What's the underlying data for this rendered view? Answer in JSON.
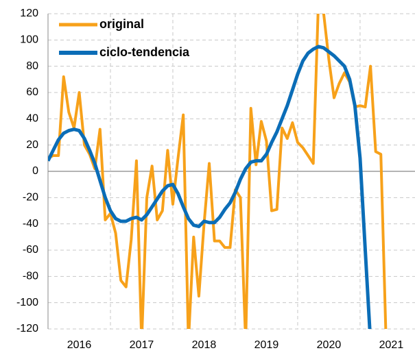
{
  "chart_data": {
    "type": "line",
    "x": [
      2016,
      2016.083,
      2016.167,
      2016.25,
      2016.333,
      2016.417,
      2016.5,
      2016.583,
      2016.667,
      2016.75,
      2016.833,
      2016.917,
      2017,
      2017.083,
      2017.167,
      2017.25,
      2017.333,
      2017.417,
      2017.5,
      2017.583,
      2017.667,
      2017.75,
      2017.833,
      2017.917,
      2018,
      2018.083,
      2018.167,
      2018.25,
      2018.333,
      2018.417,
      2018.5,
      2018.583,
      2018.667,
      2018.75,
      2018.833,
      2018.917,
      2019,
      2019.083,
      2019.167,
      2019.25,
      2019.333,
      2019.417,
      2019.5,
      2019.583,
      2019.667,
      2019.75,
      2019.833,
      2019.917,
      2020,
      2020.083,
      2020.167,
      2020.25,
      2020.333,
      2020.417,
      2020.5,
      2020.583,
      2020.667,
      2020.75,
      2020.833,
      2020.917,
      2021,
      2021.083,
      2021.167,
      2021.25,
      2021.333,
      2021.417
    ],
    "series": [
      {
        "name": "original",
        "color": "#f7a11a",
        "values": [
          10,
          12,
          12,
          72,
          45,
          33,
          60,
          20,
          13,
          2,
          32,
          -37,
          -32,
          -47,
          -83,
          -88,
          -52,
          8,
          -130,
          -20,
          4,
          -37,
          -30,
          16,
          -25,
          10,
          43,
          -130,
          -50,
          -95,
          -40,
          6,
          -53,
          -53,
          -58,
          -58,
          -14,
          -20,
          -130,
          48,
          5,
          38,
          23,
          -30,
          -29,
          33,
          25,
          37,
          22,
          18,
          12,
          6,
          130,
          120,
          85,
          56,
          67,
          75,
          68,
          49,
          50,
          49,
          80,
          15,
          13,
          -130
        ]
      },
      {
        "name": "ciclo-tendencia",
        "color": "#0b6db7",
        "values": [
          8,
          16,
          24,
          29,
          31,
          32,
          31,
          25,
          16,
          6,
          -7,
          -20,
          -30,
          -36,
          -38,
          -38,
          -36,
          -35,
          -37,
          -33,
          -27,
          -21,
          -15,
          -11,
          -10,
          -17,
          -27,
          -36,
          -41,
          -42,
          -38,
          -39,
          -39,
          -35,
          -29,
          -24,
          -16,
          -6,
          2,
          7,
          8,
          8,
          13,
          22,
          30,
          40,
          50,
          62,
          74,
          84,
          90,
          93,
          95,
          94,
          91,
          88,
          84,
          80,
          70,
          50,
          10,
          -60,
          -130,
          null,
          null,
          null
        ]
      }
    ],
    "xlim": [
      2016,
      2021.88
    ],
    "xticks": [
      {
        "value": 2016.5,
        "label": "2016"
      },
      {
        "value": 2017.5,
        "label": "2017"
      },
      {
        "value": 2018.5,
        "label": "2018"
      },
      {
        "value": 2019.5,
        "label": "2019"
      },
      {
        "value": 2020.5,
        "label": "2020"
      },
      {
        "value": 2021.5,
        "label": "2021"
      }
    ],
    "ylim": [
      -120,
      120
    ],
    "yticks": [
      -120,
      -100,
      -80,
      -60,
      -40,
      -20,
      0,
      20,
      40,
      60,
      80,
      100,
      120
    ],
    "grid": true,
    "legend": "upper left"
  }
}
